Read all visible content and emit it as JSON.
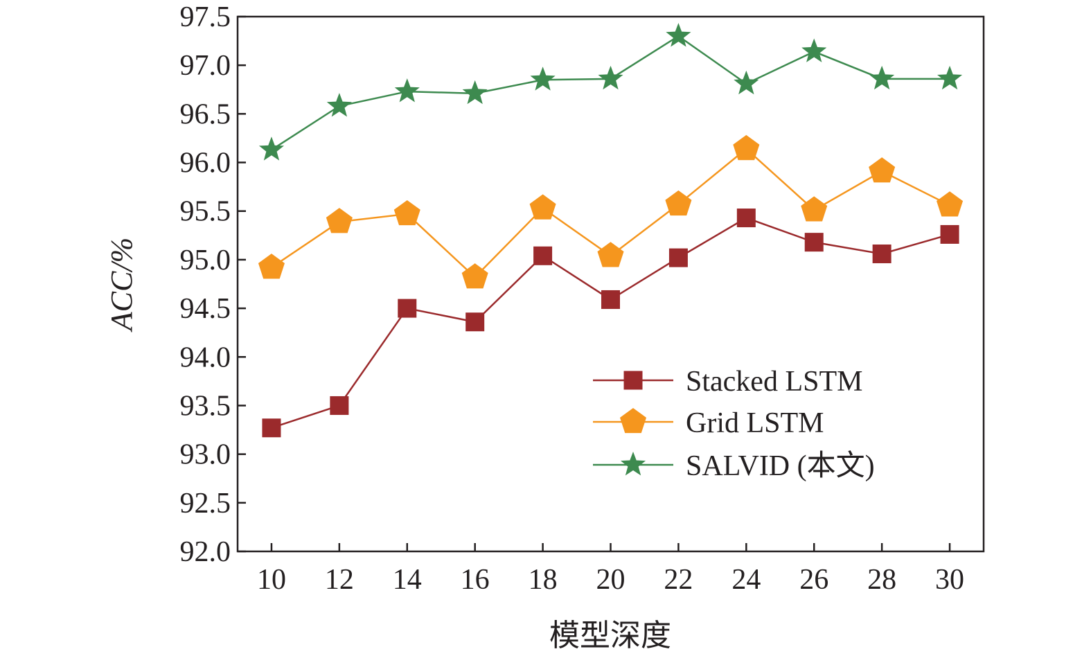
{
  "chart_data": {
    "type": "line",
    "title": "",
    "xlabel": "模型深度",
    "ylabel": "ACC/%",
    "x": [
      10,
      12,
      14,
      16,
      18,
      20,
      22,
      24,
      26,
      28,
      30
    ],
    "xlim": [
      9,
      31
    ],
    "ylim": [
      92.0,
      97.5
    ],
    "yticks": [
      "92.0",
      "92.5",
      "93.0",
      "93.5",
      "94.0",
      "94.5",
      "95.0",
      "95.5",
      "96.0",
      "96.5",
      "97.0",
      "97.5"
    ],
    "xticks": [
      "10",
      "12",
      "14",
      "16",
      "18",
      "20",
      "22",
      "24",
      "26",
      "28",
      "30"
    ],
    "grid": false,
    "legend_position": "lower-right",
    "series": [
      {
        "name": "Stacked LSTM",
        "marker": "square",
        "color": "#9b2a2c",
        "values": [
          93.27,
          93.5,
          94.5,
          94.36,
          95.04,
          94.59,
          95.02,
          95.43,
          95.18,
          95.06,
          95.26
        ]
      },
      {
        "name": "Grid LSTM",
        "marker": "pentagon",
        "color": "#f5961e",
        "values": [
          94.92,
          95.39,
          95.47,
          94.82,
          95.53,
          95.04,
          95.57,
          96.14,
          95.51,
          95.91,
          95.56
        ]
      },
      {
        "name": "SALVID (本文)",
        "marker": "star",
        "color": "#3d8a4f",
        "values": [
          96.13,
          96.58,
          96.73,
          96.71,
          96.85,
          96.86,
          97.3,
          96.81,
          97.14,
          96.86,
          96.86
        ]
      }
    ]
  }
}
